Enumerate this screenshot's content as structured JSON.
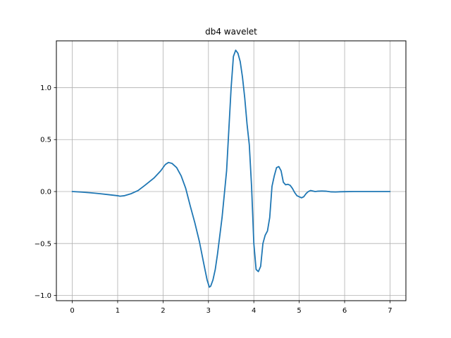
{
  "chart_data": {
    "type": "line",
    "title": "db4 wavelet",
    "xlabel": "",
    "ylabel": "",
    "xlim": [
      -0.35,
      7.35
    ],
    "ylim": [
      -1.05,
      1.45
    ],
    "grid": true,
    "x_ticks": [
      0,
      1,
      2,
      3,
      4,
      5,
      6,
      7
    ],
    "x_tick_labels": [
      "0",
      "1",
      "2",
      "3",
      "4",
      "5",
      "6",
      "7"
    ],
    "y_ticks": [
      -1.0,
      -0.5,
      0.0,
      0.5,
      1.0
    ],
    "y_tick_labels": [
      "−1.0",
      "−0.5",
      "0.0",
      "0.5",
      "1.0"
    ],
    "colors": {
      "line": "#1f77b4",
      "grid": "#b0b0b0",
      "axes": "#000000"
    },
    "series": [
      {
        "x": [
          0,
          0.2,
          0.4,
          0.6,
          0.8,
          1.0,
          1.05,
          1.15,
          1.3,
          1.45,
          1.6,
          1.8,
          1.95,
          2.05,
          2.12,
          2.2,
          2.3,
          2.4,
          2.5,
          2.6,
          2.7,
          2.8,
          2.9,
          2.97,
          3.02,
          3.05,
          3.1,
          3.15,
          3.2,
          3.3,
          3.4,
          3.45,
          3.5,
          3.55,
          3.6,
          3.65,
          3.7,
          3.75,
          3.8,
          3.85,
          3.9,
          3.95,
          4.0,
          4.05,
          4.1,
          4.15,
          4.2,
          4.25,
          4.3,
          4.35,
          4.4,
          4.45,
          4.5,
          4.55,
          4.6,
          4.65,
          4.7,
          4.75,
          4.8,
          4.85,
          4.9,
          4.95,
          5.0,
          5.05,
          5.1,
          5.15,
          5.2,
          5.25,
          5.3,
          5.35,
          5.4,
          5.45,
          5.5,
          5.55,
          5.6,
          5.65,
          5.7,
          5.8,
          5.9,
          6.0,
          6.2,
          6.5,
          7.0
        ],
        "y": [
          0,
          -0.005,
          -0.012,
          -0.02,
          -0.03,
          -0.04,
          -0.045,
          -0.04,
          -0.02,
          0.01,
          0.06,
          0.13,
          0.2,
          0.26,
          0.28,
          0.27,
          0.23,
          0.15,
          0.03,
          -0.14,
          -0.3,
          -0.48,
          -0.7,
          -0.85,
          -0.92,
          -0.91,
          -0.85,
          -0.75,
          -0.6,
          -0.25,
          0.2,
          0.6,
          1.0,
          1.3,
          1.36,
          1.33,
          1.25,
          1.1,
          0.9,
          0.65,
          0.45,
          0.05,
          -0.5,
          -0.75,
          -0.77,
          -0.72,
          -0.5,
          -0.42,
          -0.38,
          -0.25,
          0.05,
          0.15,
          0.23,
          0.24,
          0.2,
          0.09,
          0.065,
          0.07,
          0.06,
          0.03,
          -0.01,
          -0.04,
          -0.05,
          -0.06,
          -0.05,
          -0.02,
          0.0,
          0.01,
          0.005,
          0.0,
          0.003,
          0.004,
          0.005,
          0.004,
          0.003,
          0.0,
          -0.003,
          -0.004,
          -0.002,
          -0.001,
          0.0,
          0.0,
          0.0
        ]
      }
    ]
  }
}
